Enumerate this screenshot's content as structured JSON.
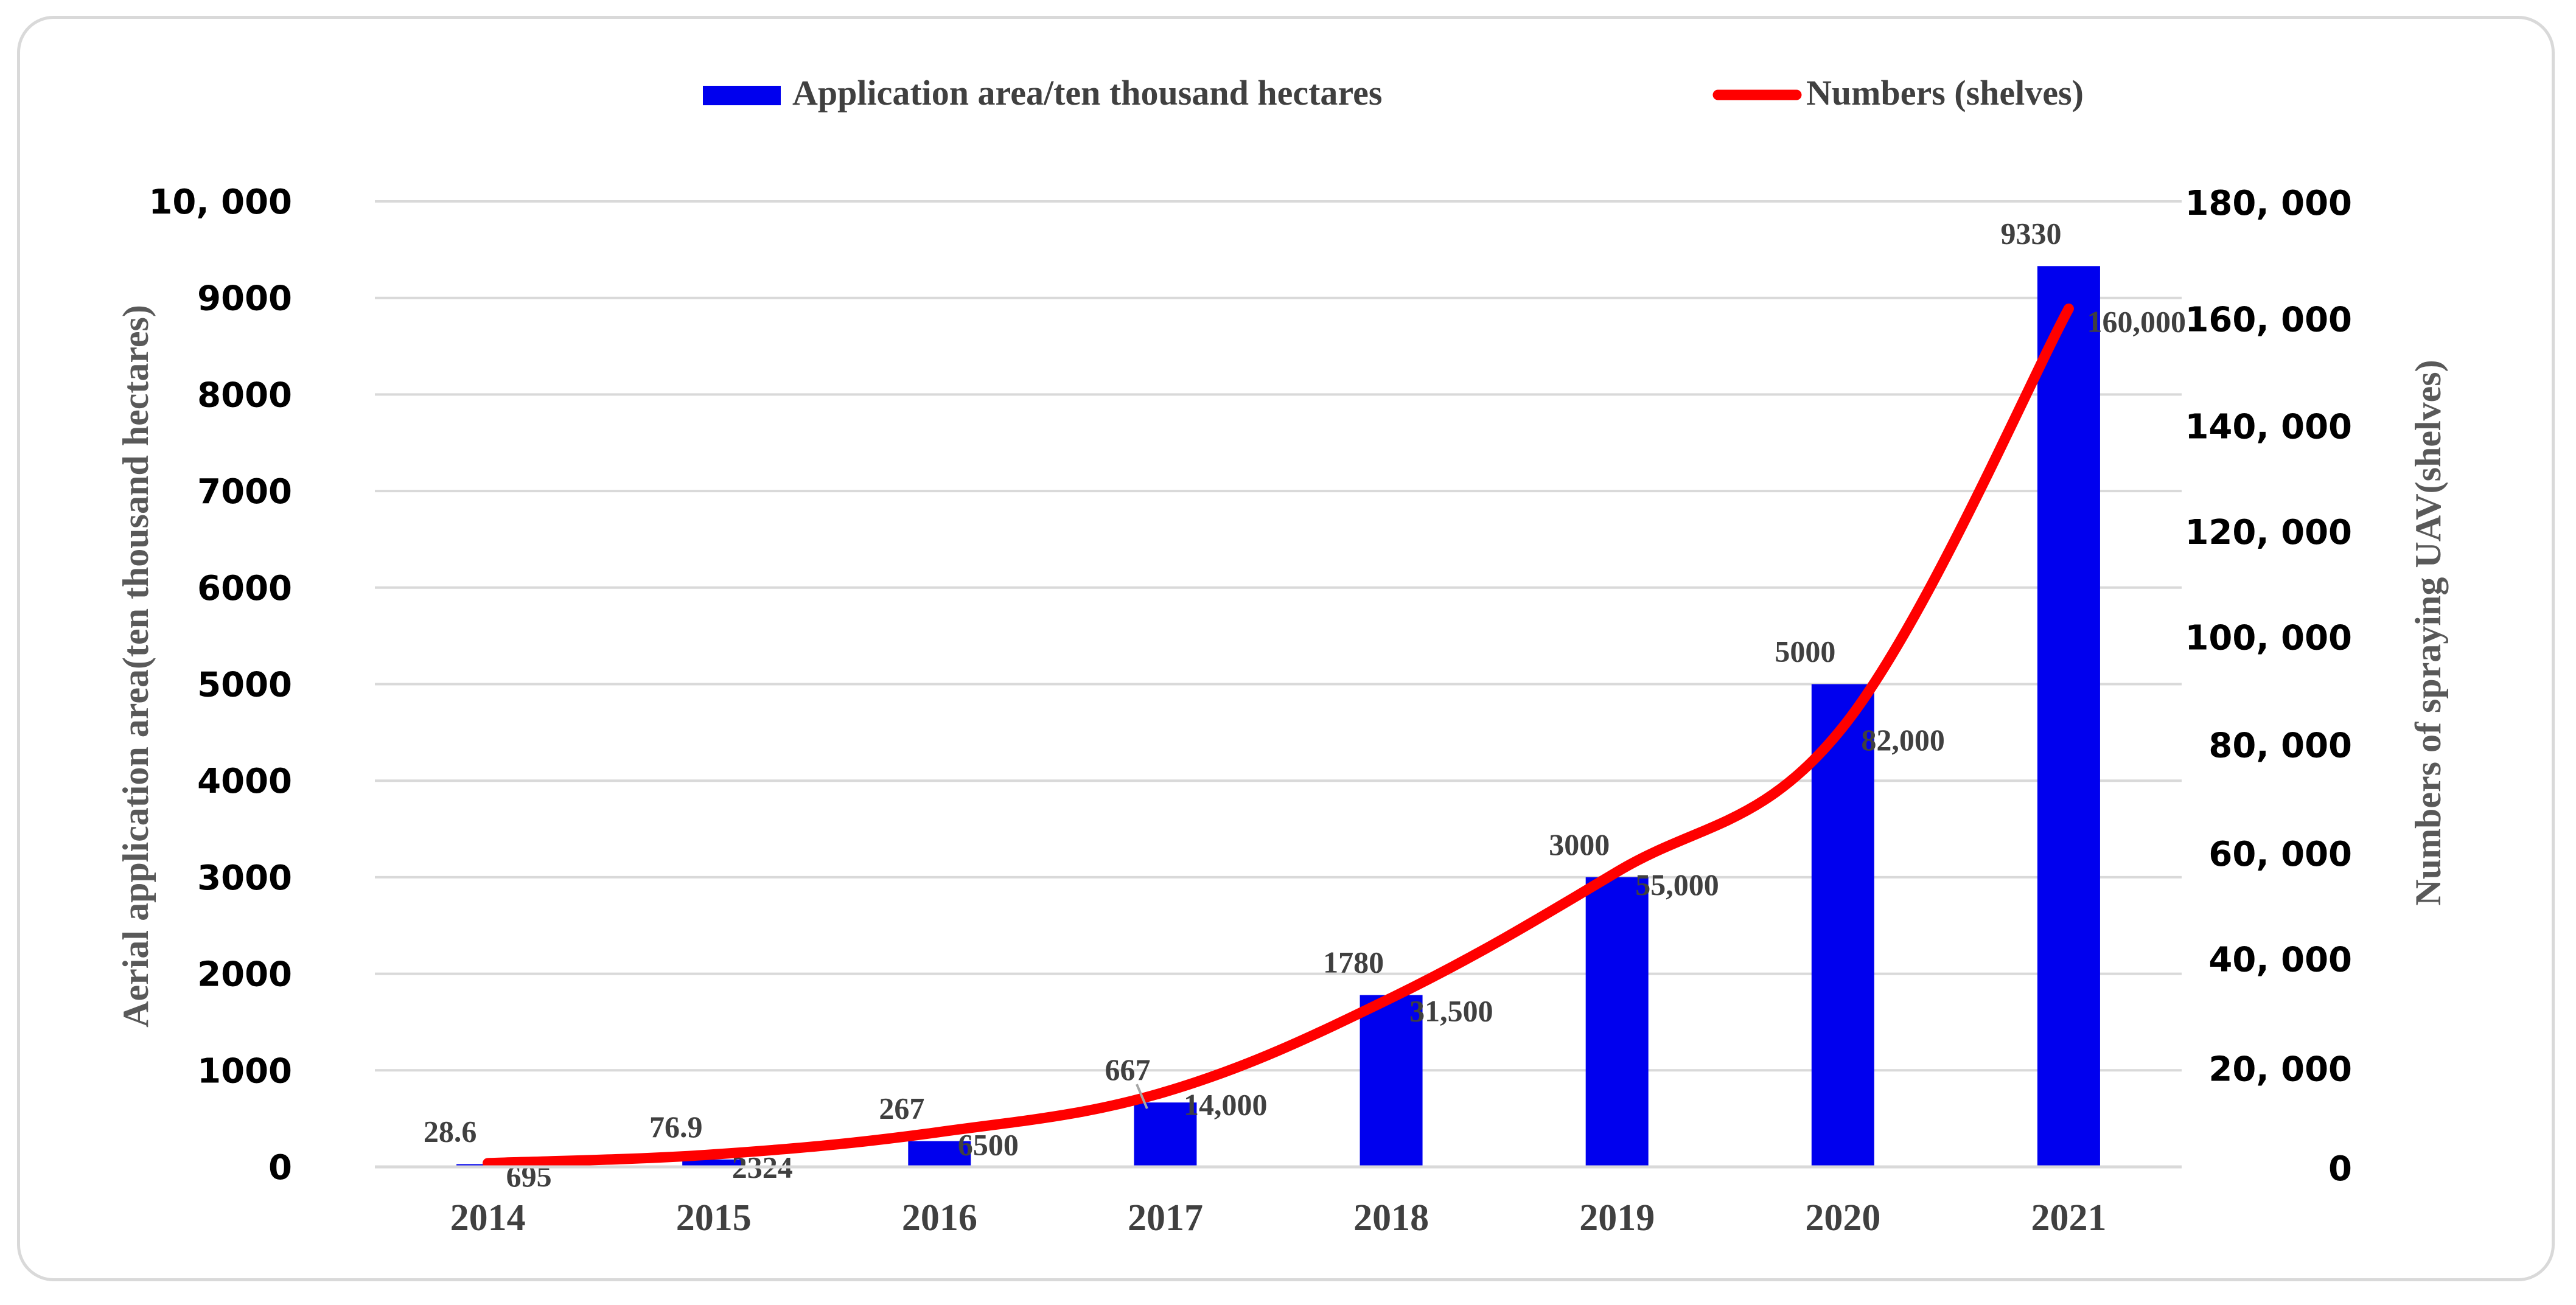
{
  "chart_data": {
    "type": "bar",
    "categories": [
      "2014",
      "2015",
      "2016",
      "2017",
      "2018",
      "2019",
      "2020",
      "2021"
    ],
    "series": [
      {
        "name": "Application area/ten thousand hectares",
        "type": "bar",
        "axis": "left",
        "color": "#0000ee",
        "values": [
          28.6,
          76.9,
          267,
          667,
          1780,
          3000,
          5000,
          9330
        ],
        "labels": [
          "28.6",
          "76.9",
          "267",
          "667",
          "1780",
          "3000",
          "5000",
          "9330"
        ]
      },
      {
        "name": "Numbers (shelves)",
        "type": "line",
        "axis": "right",
        "color": "#ff0000",
        "values": [
          695,
          2324,
          6500,
          14000,
          31500,
          55000,
          82000,
          160000
        ],
        "labels": [
          "695",
          "2324",
          "6500",
          "14,000",
          "31,500",
          "55,000",
          "82,000",
          "160,000"
        ]
      }
    ],
    "ylabel": "Aerial application area(ten thousand hectares)",
    "ylabel_right": "Numbers of spraying UAV(shelves)",
    "ylim": [
      0,
      10000
    ],
    "ylim_right": [
      0,
      180000
    ],
    "yticks": [
      0,
      1000,
      2000,
      3000,
      4000,
      5000,
      6000,
      7000,
      8000,
      9000,
      10000
    ],
    "ytick_labels": [
      "0",
      "1000",
      "2000",
      "3000",
      "4000",
      "5000",
      "6000",
      "7000",
      "8000",
      "9000",
      "10, 000"
    ],
    "yticks_right": [
      0,
      20000,
      40000,
      60000,
      80000,
      100000,
      120000,
      140000,
      160000,
      180000
    ],
    "ytick_labels_right": [
      "0",
      "20, 000",
      "40, 000",
      "60, 000",
      "80, 000",
      "100, 000",
      "120, 000",
      "140, 000",
      "160, 000",
      "180, 000"
    ],
    "grid": true,
    "legend_position": "top-center",
    "colors": {
      "grid": "#d9d9d9",
      "axis_title": "#595959",
      "tick_label": "#000000",
      "data_label": "#404040",
      "category_label": "#404040"
    }
  }
}
